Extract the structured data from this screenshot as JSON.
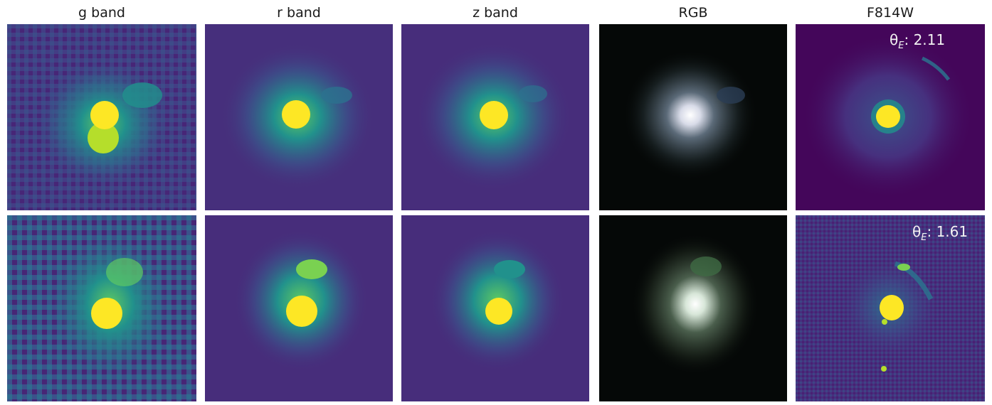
{
  "columns": [
    "g band",
    "r band",
    "z band",
    "RGB",
    "F814W"
  ],
  "rows": [
    {
      "theta_symbol": "θ",
      "theta_sub": "E",
      "theta_value": ": 2.11",
      "panels": [
        {
          "band": "g band",
          "colormap": "viridis"
        },
        {
          "band": "r band",
          "colormap": "viridis"
        },
        {
          "band": "z band",
          "colormap": "viridis"
        },
        {
          "band": "RGB",
          "colormap": "rgb"
        },
        {
          "band": "F814W",
          "colormap": "viridis"
        }
      ]
    },
    {
      "theta_symbol": "θ",
      "theta_sub": "E",
      "theta_value": ": 1.61",
      "panels": [
        {
          "band": "g band",
          "colormap": "viridis"
        },
        {
          "band": "r band",
          "colormap": "viridis"
        },
        {
          "band": "z band",
          "colormap": "viridis"
        },
        {
          "band": "RGB",
          "colormap": "rgb"
        },
        {
          "band": "F814W",
          "colormap": "viridis"
        }
      ]
    }
  ],
  "colors": {
    "viridis_dark": "#440154",
    "viridis_bg": "#472d7b",
    "viridis_mid": "#2c728e",
    "viridis_teal": "#21918c",
    "viridis_green": "#5ec962",
    "viridis_yellow": "#fde725",
    "rgb_bg": "#050807"
  }
}
